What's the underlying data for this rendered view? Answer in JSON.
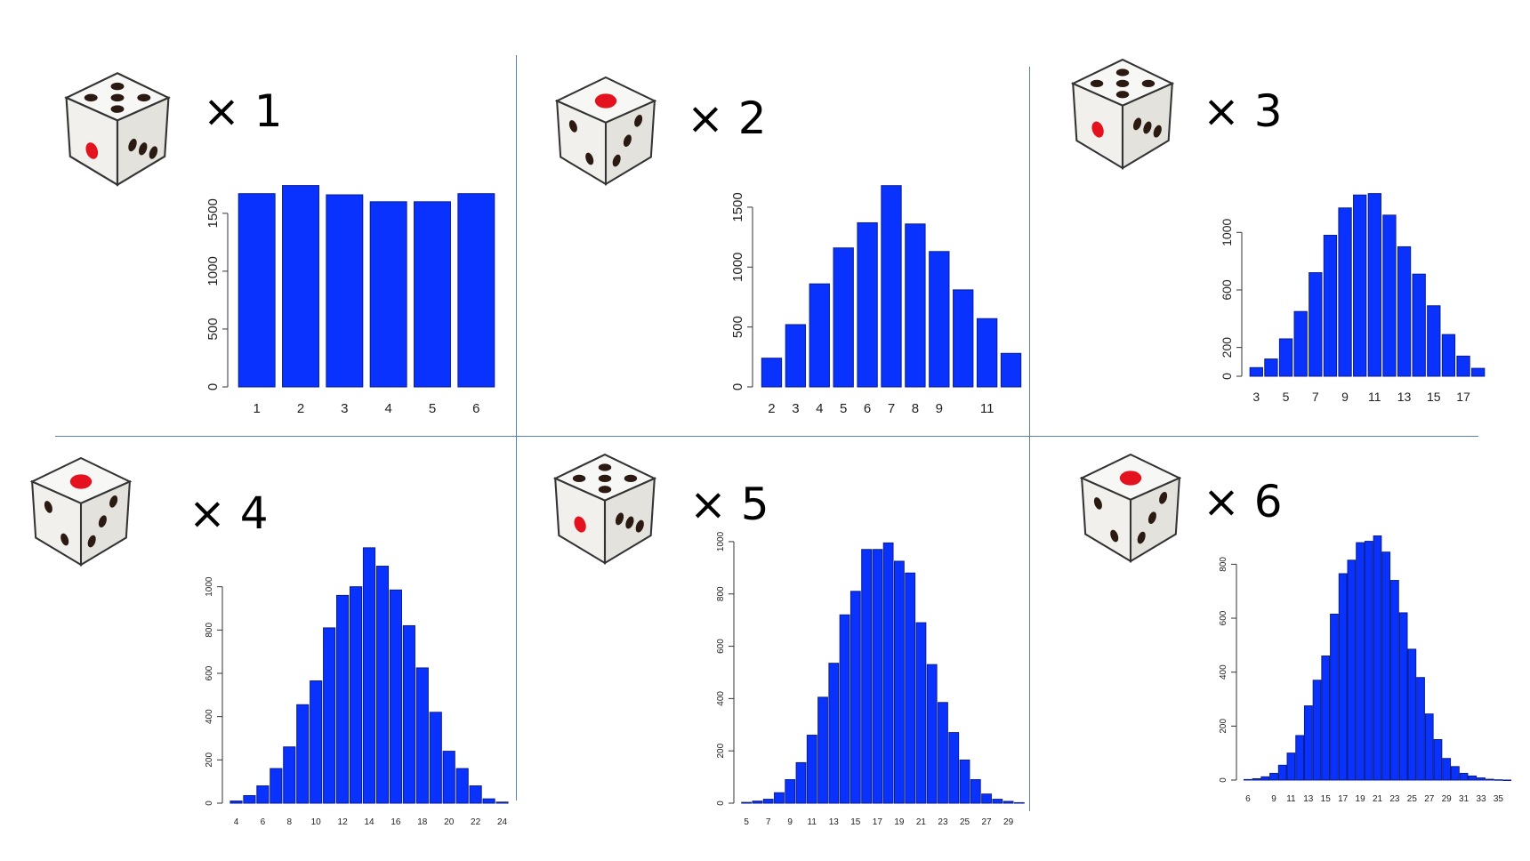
{
  "colors": {
    "bar_fill": "#0a32ff",
    "bar_stroke": "#0a1e8c",
    "divider": "#5b7fb5",
    "pip_red": "#e3121e",
    "pip_dark": "#2a1a12"
  },
  "panels": [
    {
      "multiplier": "× 1",
      "die_icon": "die-one-red-pip-icon",
      "chart_data": {
        "type": "bar",
        "categories": [
          "1",
          "2",
          "3",
          "4",
          "5",
          "6"
        ],
        "values": [
          1670,
          1740,
          1660,
          1600,
          1600,
          1670
        ],
        "xtick_labels": [
          "1",
          "2",
          "3",
          "4",
          "5",
          "6"
        ],
        "yticks": [
          0,
          500,
          1000,
          1500
        ],
        "ytick_labels": [
          "0",
          "500",
          "1000",
          "1500"
        ],
        "ylim": [
          0,
          1760
        ],
        "title": "",
        "xlabel": "",
        "ylabel": ""
      }
    },
    {
      "multiplier": "× 2",
      "die_icon": "die-one-red-pip-icon",
      "chart_data": {
        "type": "bar",
        "categories": [
          "2",
          "3",
          "4",
          "5",
          "6",
          "7",
          "8",
          "9",
          "10",
          "11",
          "12"
        ],
        "values": [
          240,
          520,
          860,
          1160,
          1370,
          1680,
          1360,
          1130,
          810,
          570,
          280
        ],
        "xtick_labels": [
          "2",
          "3",
          "4",
          "5",
          "6",
          "7",
          "8",
          "9",
          "",
          "11",
          ""
        ],
        "yticks": [
          0,
          500,
          1000,
          1500
        ],
        "ytick_labels": [
          "0",
          "500",
          "1000",
          "1500"
        ],
        "ylim": [
          0,
          1700
        ],
        "title": "",
        "xlabel": "",
        "ylabel": ""
      }
    },
    {
      "multiplier": "× 3",
      "die_icon": "die-one-red-pip-icon",
      "chart_data": {
        "type": "bar",
        "categories": [
          "3",
          "4",
          "5",
          "6",
          "7",
          "8",
          "9",
          "10",
          "11",
          "12",
          "13",
          "14",
          "15",
          "16",
          "17",
          "18"
        ],
        "values": [
          60,
          120,
          260,
          450,
          720,
          980,
          1170,
          1260,
          1270,
          1120,
          900,
          710,
          490,
          290,
          140,
          55
        ],
        "xtick_labels": [
          "3",
          "",
          "5",
          "",
          "7",
          "",
          "9",
          "",
          "11",
          "",
          "13",
          "",
          "15",
          "",
          "17",
          ""
        ],
        "yticks": [
          0,
          200,
          600,
          1000
        ],
        "ytick_labels": [
          "0",
          "200",
          "600",
          "1000"
        ],
        "ylim": [
          0,
          1280
        ],
        "title": "",
        "xlabel": "",
        "ylabel": ""
      }
    },
    {
      "multiplier": "× 4",
      "die_icon": "die-one-red-pip-icon",
      "chart_data": {
        "type": "bar",
        "categories": [
          "4",
          "5",
          "6",
          "7",
          "8",
          "9",
          "10",
          "11",
          "12",
          "13",
          "14",
          "15",
          "16",
          "17",
          "18",
          "19",
          "20",
          "21",
          "22",
          "23",
          "24"
        ],
        "values": [
          10,
          35,
          80,
          160,
          260,
          455,
          565,
          810,
          960,
          1000,
          1180,
          1095,
          985,
          820,
          625,
          420,
          240,
          160,
          80,
          20,
          5
        ],
        "xtick_labels": [
          "4",
          "",
          "6",
          "",
          "8",
          "",
          "10",
          "",
          "12",
          "",
          "14",
          "",
          "16",
          "",
          "18",
          "",
          "20",
          "",
          "22",
          "",
          "24"
        ],
        "yticks": [
          0,
          200,
          400,
          600,
          800,
          1000
        ],
        "ytick_labels": [
          "0",
          "200",
          "400",
          "600",
          "800",
          "1000"
        ],
        "ylim": [
          0,
          1200
        ],
        "title": "",
        "xlabel": "",
        "ylabel": ""
      }
    },
    {
      "multiplier": "× 5",
      "die_icon": "die-one-red-pip-icon",
      "chart_data": {
        "type": "bar",
        "categories": [
          "5",
          "6",
          "7",
          "8",
          "9",
          "10",
          "11",
          "12",
          "13",
          "14",
          "15",
          "16",
          "17",
          "18",
          "19",
          "20",
          "21",
          "22",
          "23",
          "24",
          "25",
          "26",
          "27",
          "28",
          "29",
          "30"
        ],
        "values": [
          3,
          8,
          15,
          40,
          90,
          155,
          260,
          405,
          535,
          720,
          810,
          970,
          970,
          995,
          925,
          880,
          690,
          530,
          385,
          270,
          165,
          90,
          35,
          15,
          7,
          2
        ],
        "xtick_labels": [
          "5",
          "",
          "7",
          "",
          "9",
          "",
          "11",
          "",
          "13",
          "",
          "15",
          "",
          "17",
          "",
          "19",
          "",
          "21",
          "",
          "23",
          "",
          "25",
          "",
          "27",
          "",
          "29",
          ""
        ],
        "yticks": [
          0,
          200,
          400,
          600,
          800,
          1000
        ],
        "ytick_labels": [
          "0",
          "200",
          "400",
          "600",
          "800",
          "1000"
        ],
        "ylim": [
          0,
          1010
        ],
        "title": "",
        "xlabel": "",
        "ylabel": ""
      }
    },
    {
      "multiplier": "× 6",
      "die_icon": "die-one-red-pip-icon",
      "chart_data": {
        "type": "bar",
        "categories": [
          "6",
          "7",
          "8",
          "9",
          "10",
          "11",
          "12",
          "13",
          "14",
          "15",
          "16",
          "17",
          "18",
          "19",
          "20",
          "21",
          "22",
          "23",
          "24",
          "25",
          "26",
          "27",
          "28",
          "29",
          "30",
          "31",
          "32",
          "33",
          "34",
          "35",
          "36"
        ],
        "values": [
          2,
          5,
          12,
          25,
          55,
          100,
          165,
          275,
          370,
          460,
          615,
          765,
          815,
          880,
          885,
          905,
          845,
          740,
          620,
          485,
          380,
          245,
          150,
          80,
          50,
          25,
          15,
          8,
          3,
          1,
          0
        ],
        "xtick_labels": [
          "6",
          "",
          "",
          "9",
          "",
          "11",
          "",
          "13",
          "",
          "15",
          "",
          "17",
          "",
          "19",
          "",
          "21",
          "",
          "23",
          "",
          "25",
          "",
          "27",
          "",
          "29",
          "",
          "31",
          "",
          "33",
          "",
          "35",
          ""
        ],
        "yticks": [
          0,
          200,
          400,
          600,
          800
        ],
        "ytick_labels": [
          "0",
          "200",
          "400",
          "600",
          "800"
        ],
        "ylim": [
          0,
          910
        ],
        "title": "",
        "xlabel": "",
        "ylabel": ""
      }
    }
  ]
}
